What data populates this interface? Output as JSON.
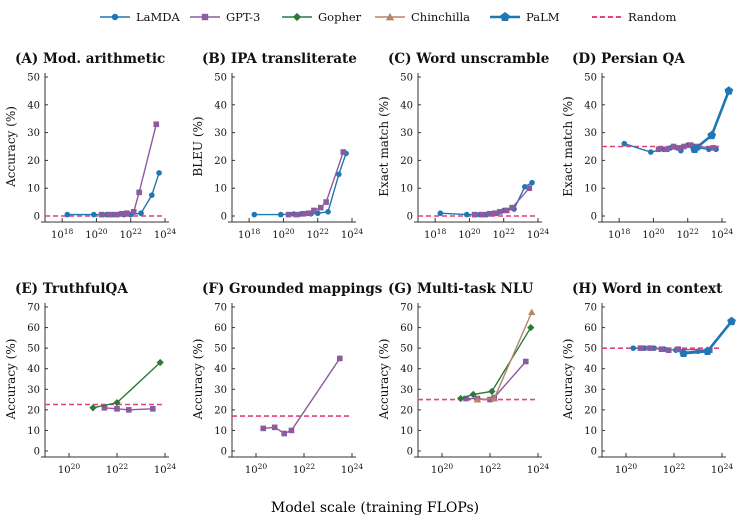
{
  "figure": {
    "xlabel": "Model scale (training FLOPs)",
    "legend": [
      {
        "name": "LaMDA",
        "color": "#1f77b4",
        "marker": "circle"
      },
      {
        "name": "GPT-3",
        "color": "#8c5a9e",
        "marker": "square"
      },
      {
        "name": "Gopher",
        "color": "#2a7a3b",
        "marker": "diamond"
      },
      {
        "name": "Chinchilla",
        "color": "#b5856a",
        "marker": "triangle"
      },
      {
        "name": "PaLM",
        "color": "#1f77b4",
        "marker": "pentagon"
      },
      {
        "name": "Random",
        "color": "#e0447a",
        "marker": "dashed"
      }
    ]
  },
  "chart_data": [
    {
      "type": "line",
      "title": "(A) Mod. arithmetic",
      "ylabel": "Accuracy (%)",
      "x_scale": "log10",
      "xlim": [
        1e+17,
        1e+24
      ],
      "ylim": [
        0,
        50
      ],
      "xticks": [
        1e+18,
        1e+20,
        1e+22,
        1e+24
      ],
      "yticks": [
        0,
        10,
        20,
        30,
        40,
        50
      ],
      "random_baseline": 0,
      "series": [
        {
          "name": "LaMDA",
          "x": [
            2e+18,
            7e+19,
            4e+20,
            1e+21,
            4e+21,
            1e+22,
            4e+22,
            1.7e+23,
            4.5e+23
          ],
          "y": [
            0.5,
            0.5,
            0.5,
            0.5,
            0.5,
            0.5,
            1.0,
            7.5,
            15.5
          ]
        },
        {
          "name": "GPT-3",
          "x": [
            2e+20,
            6e+20,
            1.5e+21,
            3e+21,
            6e+21,
            1.5e+22,
            3.1e+22,
            3.1e+23
          ],
          "y": [
            0.5,
            0.5,
            0.5,
            0.8,
            1.0,
            1.5,
            8.5,
            33.0
          ]
        }
      ]
    },
    {
      "type": "line",
      "title": "(B) IPA transliterate",
      "ylabel": "BLEU (%)",
      "x_scale": "log10",
      "xlim": [
        1e+17,
        1e+24
      ],
      "ylim": [
        0,
        50
      ],
      "xticks": [
        1e+18,
        1e+20,
        1e+22,
        1e+24
      ],
      "yticks": [
        0,
        10,
        20,
        30,
        40,
        50
      ],
      "random_baseline": null,
      "series": [
        {
          "name": "LaMDA",
          "x": [
            2e+18,
            7e+19,
            4e+20,
            1e+21,
            4e+21,
            1e+22,
            4e+22,
            1.7e+23,
            4.5e+23
          ],
          "y": [
            0.5,
            0.5,
            0.7,
            0.7,
            0.8,
            1.0,
            1.5,
            15.0,
            22.5
          ]
        },
        {
          "name": "GPT-3",
          "x": [
            2e+20,
            6e+20,
            1.5e+21,
            3e+21,
            6e+21,
            1.5e+22,
            3.1e+22,
            3.1e+23
          ],
          "y": [
            0.5,
            0.5,
            0.8,
            1.0,
            2.0,
            3.0,
            5.0,
            23.0
          ]
        }
      ]
    },
    {
      "type": "line",
      "title": "(C) Word unscramble",
      "ylabel": "Exact match (%)",
      "x_scale": "log10",
      "xlim": [
        1e+17,
        1e+24
      ],
      "ylim": [
        0,
        50
      ],
      "xticks": [
        1e+18,
        1e+20,
        1e+22,
        1e+24
      ],
      "yticks": [
        0,
        10,
        20,
        30,
        40,
        50
      ],
      "random_baseline": 0,
      "series": [
        {
          "name": "LaMDA",
          "x": [
            2e+18,
            7e+19,
            4e+20,
            1e+21,
            4e+21,
            1e+22,
            4e+22,
            1.7e+23,
            4.5e+23
          ],
          "y": [
            1.0,
            0.5,
            0.5,
            0.5,
            1.0,
            2.0,
            2.5,
            10.5,
            12.0
          ]
        },
        {
          "name": "GPT-3",
          "x": [
            2e+20,
            6e+20,
            1.5e+21,
            3e+21,
            6e+21,
            1.5e+22,
            3.1e+22,
            3.1e+23
          ],
          "y": [
            0.5,
            0.5,
            0.8,
            1.0,
            1.5,
            2.0,
            3.0,
            10.0
          ]
        }
      ]
    },
    {
      "type": "line",
      "title": "(D) Persian QA",
      "ylabel": "Exact match (%)",
      "x_scale": "log10",
      "xlim": [
        1e+17,
        1e+24
      ],
      "ylim": [
        0,
        50
      ],
      "xticks": [
        1e+18,
        1e+20,
        1e+22,
        1e+24
      ],
      "yticks": [
        0,
        10,
        20,
        30,
        40,
        50
      ],
      "random_baseline": 25,
      "series": [
        {
          "name": "LaMDA",
          "x": [
            2e+18,
            7e+19,
            4e+20,
            1e+21,
            4e+21,
            1e+22,
            4e+22,
            1.7e+23,
            4.5e+23
          ],
          "y": [
            26.0,
            23.0,
            24.0,
            24.5,
            23.5,
            25.5,
            24.5,
            24.0,
            24.0
          ]
        },
        {
          "name": "GPT-3",
          "x": [
            2e+20,
            6e+20,
            1.5e+21,
            3e+21,
            6e+21,
            1.5e+22,
            3.1e+22,
            3.1e+23
          ],
          "y": [
            24.0,
            24.0,
            25.0,
            24.5,
            25.0,
            25.5,
            25.0,
            24.5
          ]
        },
        {
          "name": "PaLM",
          "x": [
            2.5e+22,
            2.5e+23,
            2.5e+24
          ],
          "y": [
            24.0,
            29.0,
            45.0
          ]
        }
      ]
    },
    {
      "type": "line",
      "title": "(E) TruthfulQA",
      "ylabel": "Accuracy (%)",
      "x_scale": "log10",
      "xlim": [
        1e+19,
        1e+24
      ],
      "ylim": [
        0,
        70
      ],
      "xticks": [
        1e+20,
        1e+22,
        1e+24
      ],
      "yticks": [
        0,
        10,
        20,
        30,
        40,
        50,
        60,
        70
      ],
      "random_baseline": 22.6,
      "series": [
        {
          "name": "GPT-3",
          "x": [
            3e+21,
            1e+22,
            3.1e+22,
            3.1e+23
          ],
          "y": [
            21.0,
            20.5,
            20.0,
            20.5
          ]
        },
        {
          "name": "Gopher",
          "x": [
            1e+21,
            1e+22,
            6.3e+23
          ],
          "y": [
            21.0,
            23.5,
            43.0
          ]
        }
      ]
    },
    {
      "type": "line",
      "title": "(F) Grounded mappings",
      "ylabel": "Accuracy (%)",
      "x_scale": "log10",
      "xlim": [
        1e+19,
        1e+24
      ],
      "ylim": [
        0,
        70
      ],
      "xticks": [
        1e+20,
        1e+22,
        1e+24
      ],
      "yticks": [
        0,
        10,
        20,
        30,
        40,
        50,
        60,
        70
      ],
      "random_baseline": 17,
      "series": [
        {
          "name": "GPT-3",
          "x": [
            2e+20,
            6e+20,
            1.5e+21,
            3e+21,
            3.1e+23
          ],
          "y": [
            11.0,
            11.5,
            8.5,
            10.0,
            45.0
          ]
        }
      ]
    },
    {
      "type": "line",
      "title": "(G) Multi-task NLU",
      "ylabel": "Accuracy (%)",
      "x_scale": "log10",
      "xlim": [
        1e+19,
        1e+24
      ],
      "ylim": [
        0,
        70
      ],
      "xticks": [
        1e+20,
        1e+22,
        1e+24
      ],
      "yticks": [
        0,
        10,
        20,
        30,
        40,
        50,
        60,
        70
      ],
      "random_baseline": 25,
      "series": [
        {
          "name": "GPT-3",
          "x": [
            1e+21,
            3e+21,
            1e+22,
            1.5e+22,
            3.1e+23
          ],
          "y": [
            25.5,
            25.5,
            25.0,
            26.0,
            43.5
          ]
        },
        {
          "name": "Gopher",
          "x": [
            6e+20,
            2e+21,
            1.2e+22,
            5e+23
          ],
          "y": [
            25.5,
            27.5,
            29.0,
            60.0
          ]
        },
        {
          "name": "Chinchilla",
          "x": [
            3e+21,
            1.5e+22,
            5.5e+23
          ],
          "y": [
            25.0,
            25.5,
            67.5
          ]
        }
      ]
    },
    {
      "type": "line",
      "title": "(H) Word in context",
      "ylabel": "Accuracy (%)",
      "x_scale": "log10",
      "xlim": [
        1e+19,
        1e+24
      ],
      "ylim": [
        0,
        70
      ],
      "xticks": [
        1e+20,
        1e+22,
        1e+24
      ],
      "yticks": [
        0,
        10,
        20,
        30,
        40,
        50,
        60,
        70
      ],
      "random_baseline": 50,
      "series": [
        {
          "name": "LaMDA",
          "x": [
            2e+20,
            6e+20,
            1.5e+21,
            4e+21,
            1.2e+22,
            2.5e+22,
            1e+23,
            3e+23
          ],
          "y": [
            50.0,
            50.0,
            50.0,
            49.5,
            49.0,
            48.0,
            48.5,
            49.0
          ]
        },
        {
          "name": "GPT-3",
          "x": [
            4e+20,
            1e+21,
            3e+21,
            6e+21,
            1.5e+22,
            3.1e+23
          ],
          "y": [
            50.0,
            50.0,
            49.5,
            49.0,
            49.5,
            49.0
          ]
        },
        {
          "name": "PaLM",
          "x": [
            2.5e+22,
            2.5e+23,
            2.5e+24
          ],
          "y": [
            47.5,
            48.5,
            63.0
          ]
        }
      ]
    }
  ]
}
